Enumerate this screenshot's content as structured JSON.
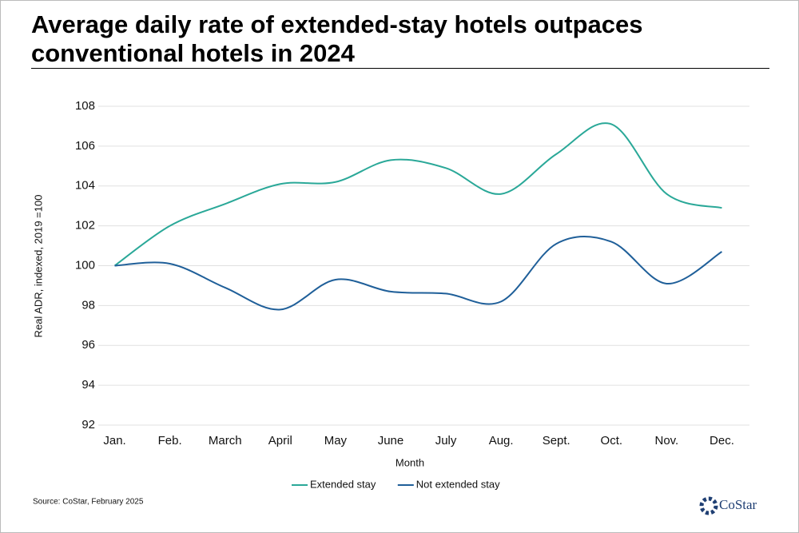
{
  "chart_data": {
    "type": "line",
    "title": "Average daily rate of extended-stay hotels outpaces conventional hotels in 2024",
    "x_label": "Month",
    "y_label": "Real ADR, indexed,  2019 =100",
    "categories": [
      "Jan.",
      "Feb.",
      "March",
      "April",
      "May",
      "June",
      "July",
      "Aug.",
      "Sept.",
      "Oct.",
      "Nov.",
      "Dec."
    ],
    "series": [
      {
        "name": "Extended stay",
        "color": "#2aa898",
        "values": [
          100,
          102,
          103.1,
          104.1,
          104.2,
          105.3,
          104.9,
          103.6,
          105.6,
          107.1,
          103.6,
          102.9
        ]
      },
      {
        "name": "Not extended stay",
        "color": "#1f5f99",
        "values": [
          100,
          100.1,
          98.9,
          97.8,
          99.3,
          98.7,
          98.6,
          98.2,
          101.1,
          101.2,
          99.1,
          100.7
        ]
      }
    ],
    "ylim": [
      92,
      108
    ],
    "yticks": [
      92,
      94,
      96,
      98,
      100,
      102,
      104,
      106,
      108
    ],
    "grid": true,
    "smooth": true,
    "legend": "bottom",
    "source": "Source: CoStar, February 2025",
    "brand": "CoStar"
  }
}
